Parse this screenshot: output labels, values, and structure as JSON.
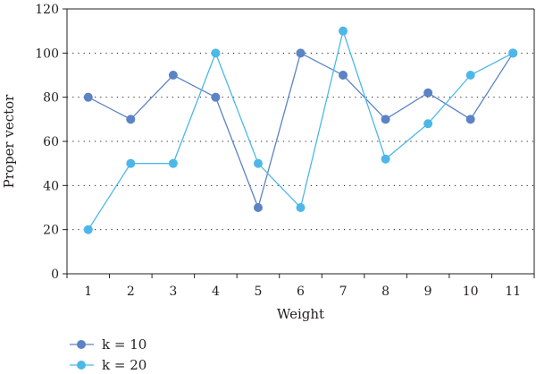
{
  "chart_data": {
    "type": "line",
    "title": "",
    "xlabel": "Weight",
    "ylabel": "Proper vector",
    "x": [
      1,
      2,
      3,
      4,
      5,
      6,
      7,
      8,
      9,
      10,
      11
    ],
    "xticks": [
      "1",
      "2",
      "3",
      "4",
      "5",
      "6",
      "7",
      "8",
      "9",
      "10",
      "11"
    ],
    "ylim": [
      0,
      120
    ],
    "yticks": [
      "0",
      "20",
      "40",
      "60",
      "80",
      "100",
      "120"
    ],
    "grid": "horizontal-dotted",
    "legend": "bottom-left",
    "series": [
      {
        "name": "k = 10",
        "color": "#5b83c5",
        "values": [
          80,
          70,
          90,
          80,
          30,
          100,
          90,
          70,
          82,
          70,
          100
        ]
      },
      {
        "name": "k = 20",
        "color": "#4db8e8",
        "values": [
          20,
          50,
          50,
          100,
          50,
          30,
          110,
          52,
          68,
          90,
          100
        ]
      }
    ]
  }
}
